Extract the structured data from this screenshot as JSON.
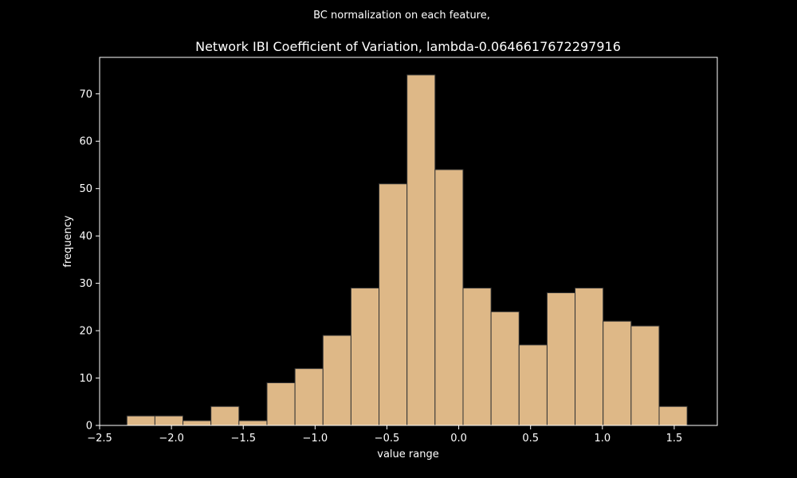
{
  "chart_data": {
    "type": "bar",
    "suptitle": "BC normalization on each feature,",
    "title": "Network IBI Coefficient of Variation, lambda-0.0646617672297916",
    "xlabel": "value range",
    "ylabel": "frequency",
    "xlim": [
      -2.5,
      1.8
    ],
    "ylim": [
      0,
      77.7
    ],
    "xticks": [
      -2.5,
      -2.0,
      -1.5,
      -1.0,
      -0.5,
      0.0,
      0.5,
      1.0,
      1.5
    ],
    "xtick_labels": [
      "−2.5",
      "−2.0",
      "−1.5",
      "−1.0",
      "−0.5",
      "0.0",
      "0.5",
      "1.0",
      "1.5"
    ],
    "yticks": [
      0,
      10,
      20,
      30,
      40,
      50,
      60,
      70
    ],
    "ytick_labels": [
      "0",
      "10",
      "20",
      "30",
      "40",
      "50",
      "60",
      "70"
    ],
    "bin_edges": [
      -2.31,
      -2.115,
      -1.92,
      -1.725,
      -1.53,
      -1.335,
      -1.14,
      -0.945,
      -0.75,
      -0.555,
      -0.36,
      -0.165,
      0.03,
      0.225,
      0.42,
      0.615,
      0.81,
      1.005,
      1.2,
      1.395,
      1.59
    ],
    "values": [
      2,
      2,
      1,
      4,
      1,
      9,
      12,
      19,
      29,
      51,
      74,
      54,
      29,
      24,
      17,
      28,
      29,
      22,
      21,
      4
    ],
    "grid": false,
    "colors": {
      "background": "#000000",
      "bar_fill": "#deb887",
      "bar_edge": "#333333",
      "axes": "#ffffff"
    }
  }
}
